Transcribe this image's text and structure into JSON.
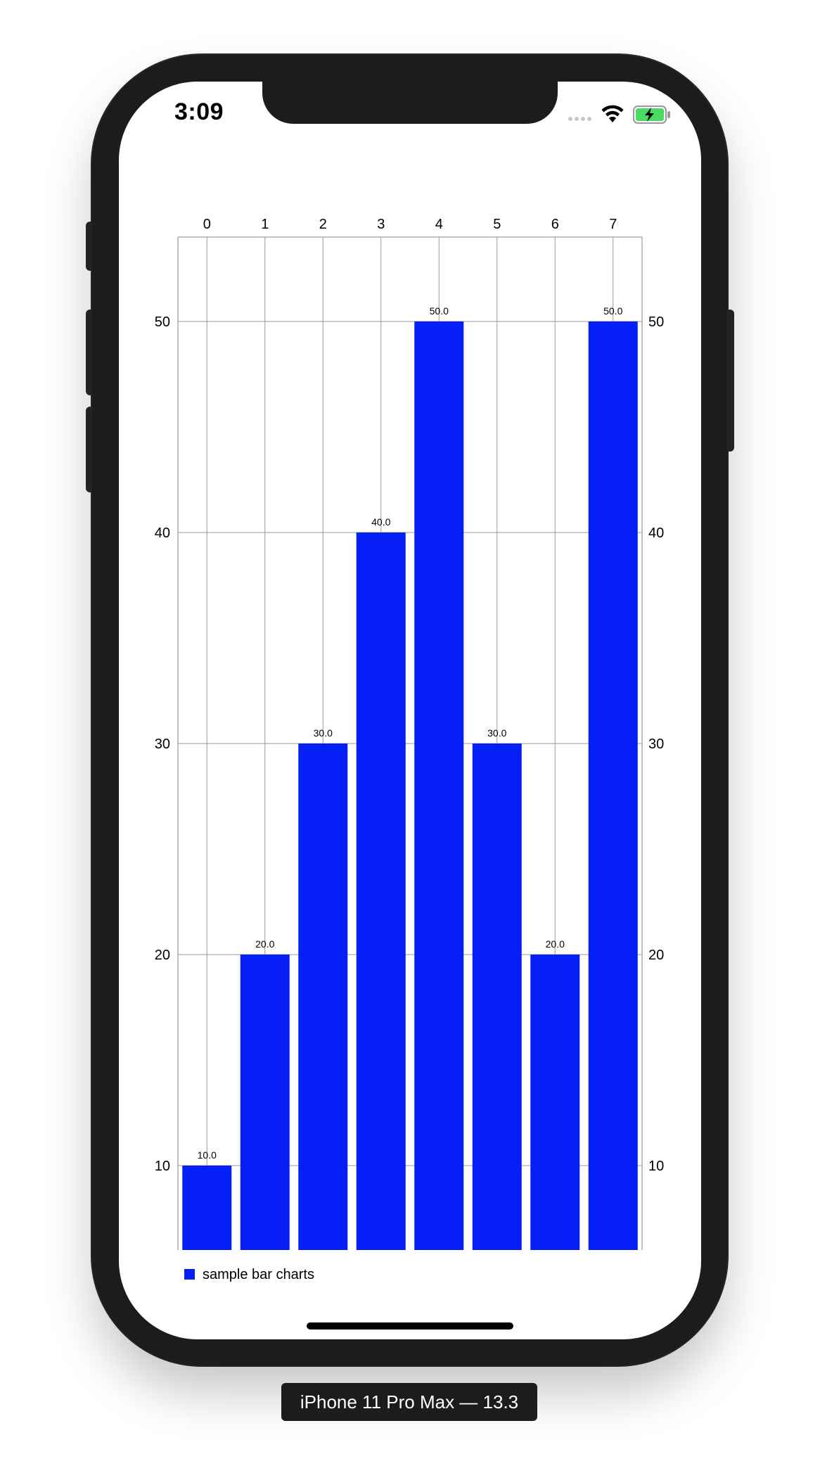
{
  "status_bar": {
    "time": "3:09",
    "icons": [
      "signal-dots-icon",
      "wifi-icon",
      "battery-charging-icon"
    ],
    "battery_color": "#4cd964"
  },
  "device_label": "iPhone 11 Pro Max — 13.3",
  "chart_data": {
    "type": "bar",
    "categories": [
      "0",
      "1",
      "2",
      "3",
      "4",
      "5",
      "6",
      "7"
    ],
    "series": [
      {
        "name": "sample bar charts",
        "values": [
          10,
          20,
          30,
          40,
          50,
          30,
          20,
          50
        ],
        "value_labels": [
          "10.0",
          "20.0",
          "30.0",
          "40.0",
          "50.0",
          "30.0",
          "20.0",
          "50.0"
        ],
        "color": "#051ff6"
      }
    ],
    "y_ticks": [
      10,
      20,
      30,
      40,
      50
    ],
    "y_tick_labels": [
      "10",
      "20",
      "30",
      "40",
      "50"
    ],
    "ylim": [
      6,
      54
    ],
    "x_axis_position": "top",
    "y_axis": "both sides",
    "grid": true,
    "legend": "bottom-left",
    "title": "",
    "xlabel": "",
    "ylabel": ""
  }
}
